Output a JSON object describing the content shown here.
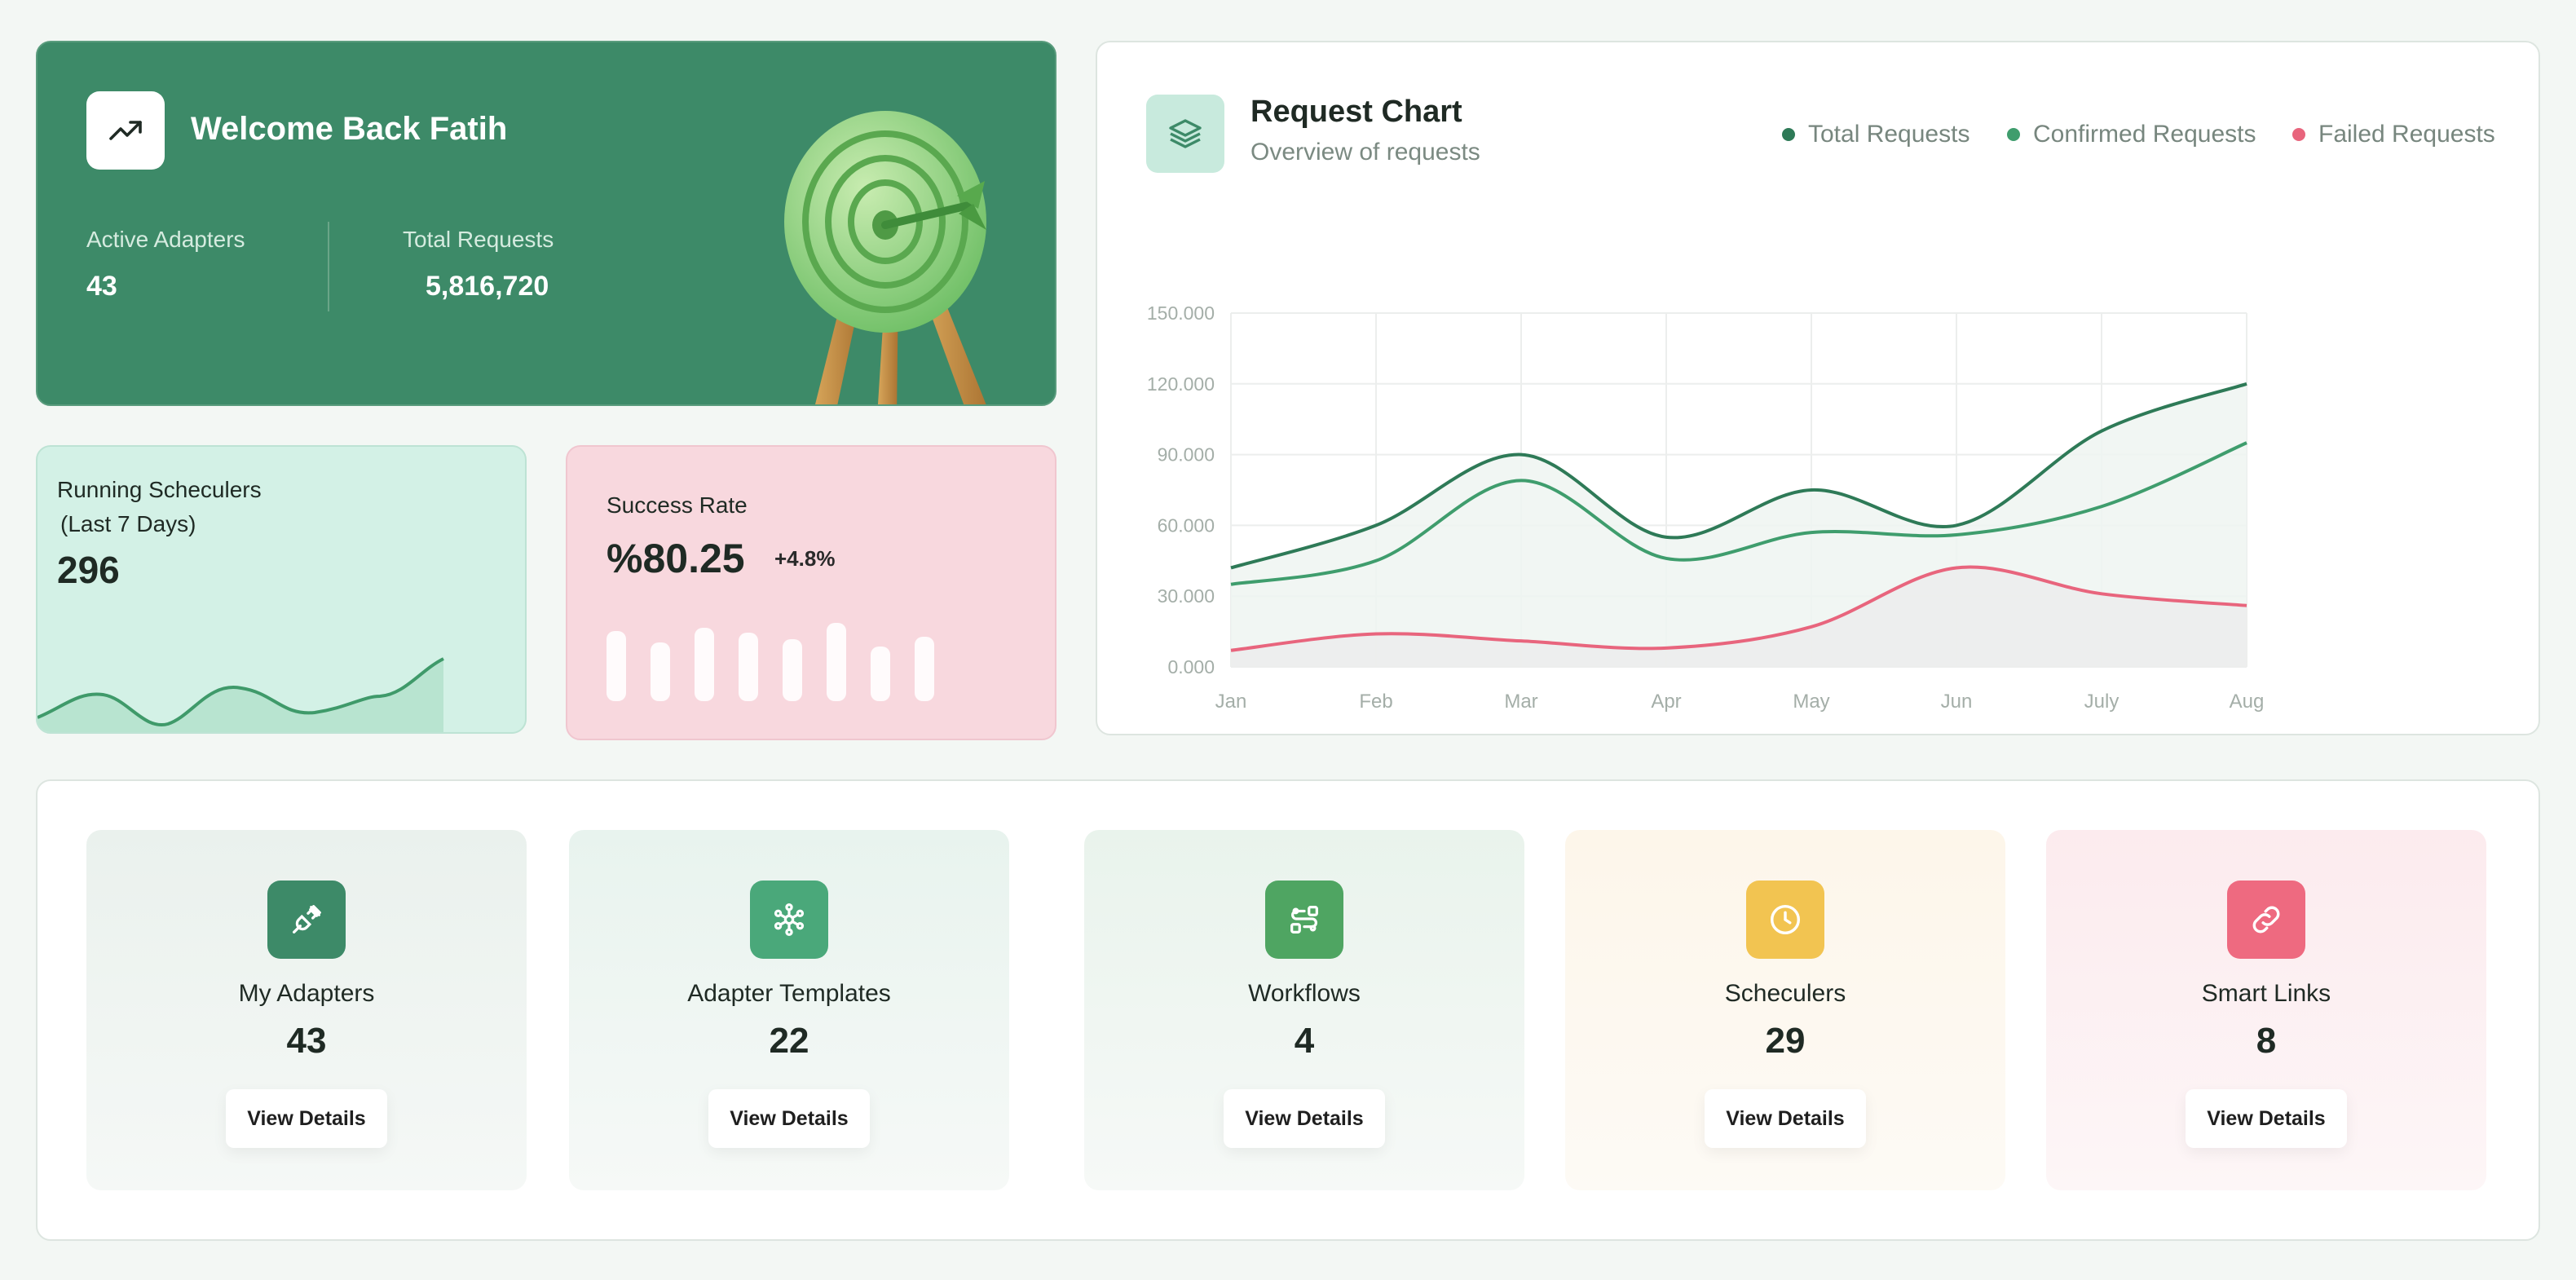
{
  "welcome": {
    "title": "Welcome Back Fatih",
    "icon": "trending-up-icon",
    "active_adapters_label": "Active Adapters",
    "active_adapters_value": "43",
    "total_requests_label": "Total Requests",
    "total_requests_value": "5,816,720"
  },
  "schedulers": {
    "title_line1": "Running Scheculers",
    "title_line2": "(Last 7 Days)",
    "value": "296",
    "accent": "#3f9a6a"
  },
  "success_rate": {
    "title": "Success Rate",
    "value": "%80.25",
    "delta": "+4.8%",
    "bars": [
      0.72,
      0.6,
      0.75,
      0.7,
      0.63,
      0.8,
      0.56,
      0.66
    ]
  },
  "request_chart": {
    "title": "Request Chart",
    "subtitle": "Overview of requests",
    "legend": [
      {
        "label": "Total Requests",
        "color": "#2e7a57"
      },
      {
        "label": "Confirmed Requests",
        "color": "#3f9d6d"
      },
      {
        "label": "Failed Requests",
        "color": "#e8657d"
      }
    ]
  },
  "chart_data": {
    "type": "line",
    "title": "Request Chart",
    "categories": [
      "Jan",
      "Feb",
      "Mar",
      "Apr",
      "May",
      "Jun",
      "July",
      "Aug"
    ],
    "y_tick_labels": [
      "0.000",
      "30.000",
      "60.000",
      "90.000",
      "120.000",
      "150.000"
    ],
    "ylim": [
      0,
      150000
    ],
    "series": [
      {
        "name": "Total Requests",
        "color": "#2e7a57",
        "values": [
          42000,
          60000,
          90000,
          55000,
          75000,
          60000,
          100000,
          120000
        ]
      },
      {
        "name": "Confirmed Requests",
        "color": "#3f9d6d",
        "values": [
          35000,
          45000,
          79000,
          46000,
          57000,
          56000,
          68000,
          95000
        ]
      },
      {
        "name": "Failed Requests",
        "color": "#e8657d",
        "values": [
          7000,
          14000,
          11000,
          8000,
          17000,
          42000,
          31000,
          26000
        ]
      }
    ]
  },
  "summary": {
    "tiles": [
      {
        "label": "My Adapters",
        "count": "43",
        "button": "View Details",
        "icon": "plug-icon",
        "icon_bg": "#3d8a68",
        "tint": "#eaf1ed"
      },
      {
        "label": "Adapter Templates",
        "count": "22",
        "button": "View Details",
        "icon": "network-icon",
        "icon_bg": "#4aa87a",
        "tint": "#e8f3ee"
      },
      {
        "label": "Workflows",
        "count": "4",
        "button": "View Details",
        "icon": "workflow-icon",
        "icon_bg": "#4fa562",
        "tint": "#e9f3ec"
      },
      {
        "label": "Scheculers",
        "count": "29",
        "button": "View Details",
        "icon": "clock-icon",
        "icon_bg": "#f2c451",
        "tint": "#fdf6ea"
      },
      {
        "label": "Smart Links",
        "count": "8",
        "button": "View Details",
        "icon": "link-icon",
        "icon_bg": "#ee6a80",
        "tint": "#fcebee"
      }
    ]
  }
}
